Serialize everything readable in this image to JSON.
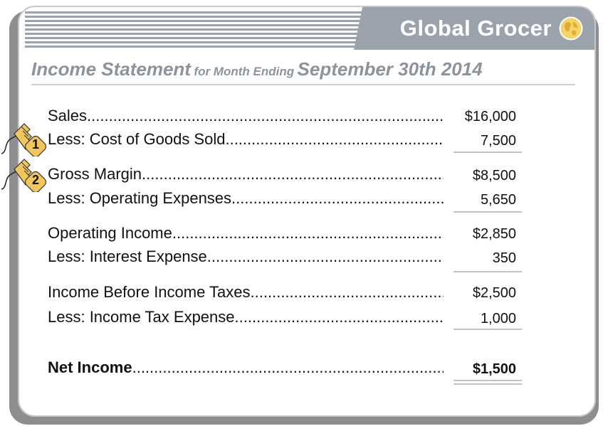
{
  "brand": {
    "name": "Global Grocer",
    "icon": "globe-icon",
    "bar_color": "#9aa3ab"
  },
  "title": {
    "main": "Income Statement",
    "qualifier": "for Month Ending",
    "date": "September 30th 2014"
  },
  "markers": [
    {
      "number": "1",
      "icon": "hand-cursor-icon"
    },
    {
      "number": "2",
      "icon": "hand-cursor-icon"
    }
  ],
  "rows": [
    {
      "label": "Sales",
      "value": "$16,000",
      "bold": false
    },
    {
      "label": "Less: Cost of Goods Sold",
      "value": "7,500",
      "bold": false
    },
    {
      "label": "Gross Margin",
      "value": "$8,500",
      "bold": false
    },
    {
      "label": "Less: Operating Expenses",
      "value": "5,650",
      "bold": false
    },
    {
      "label": "Operating Income",
      "value": "$2,850",
      "bold": false
    },
    {
      "label": "Less: Interest Expense",
      "value": "350",
      "bold": false
    },
    {
      "label": "Income Before Income Taxes",
      "value": "$2,500",
      "bold": false
    },
    {
      "label": "Less: Income Tax Expense",
      "value": "1,000",
      "bold": false
    },
    {
      "label": "Net  Income",
      "value": "$1,500",
      "bold": true
    }
  ]
}
